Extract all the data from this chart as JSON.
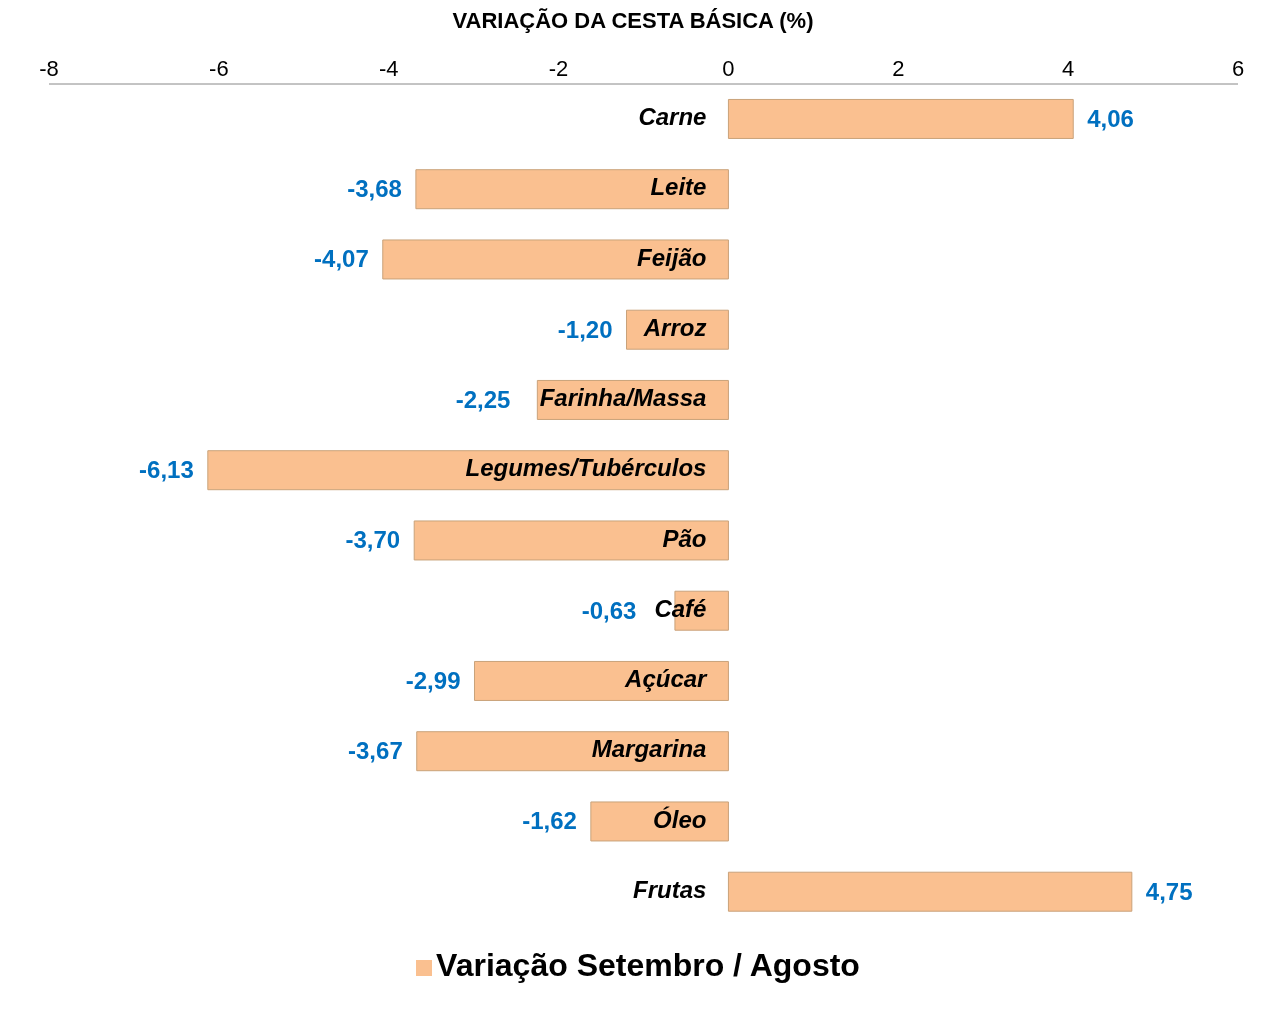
{
  "chart_data": {
    "type": "bar",
    "orientation": "horizontal",
    "title": "VARIAÇÃO DA CESTA BÁSICA (%)",
    "categories": [
      "Carne",
      "Leite",
      "Feijão",
      "Arroz",
      "Farinha/Massa",
      "Legumes/Tubérculos",
      "Pão",
      "Café",
      "Açúcar",
      "Margarina",
      "Óleo",
      "Frutas"
    ],
    "series": [
      {
        "name": "Variação Setembro / Agosto",
        "color": "#fac090",
        "values": [
          4.06,
          -3.68,
          -4.07,
          -1.2,
          -2.25,
          -6.13,
          -3.7,
          -0.63,
          -2.99,
          -3.67,
          -1.62,
          4.75
        ],
        "value_labels": [
          "4,06",
          "-3,68",
          "-4,07",
          "-1,20",
          "-2,25",
          "-6,13",
          "-3,70",
          "-0,63",
          "-2,99",
          "-3,67",
          "-1,62",
          "4,75"
        ]
      }
    ],
    "xlim": [
      -8,
      6
    ],
    "xticks": [
      -8,
      -6,
      -4,
      -2,
      0,
      2,
      4,
      6
    ],
    "grid": false,
    "legend": "bottom"
  }
}
